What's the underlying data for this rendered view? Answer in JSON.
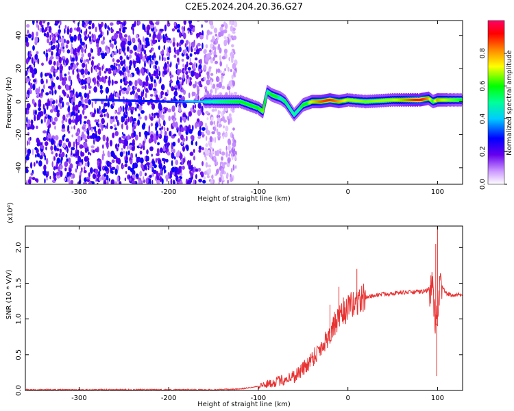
{
  "title": "C2E5.2024.204.20.36.G27",
  "chart_data": [
    {
      "type": "heatmap",
      "xlabel": "Height of straight line (km)",
      "ylabel": "Frequency (Hz)",
      "xlim": [
        -360,
        128
      ],
      "ylim": [
        -50,
        49
      ],
      "xticks": [
        -300,
        -200,
        -100,
        0,
        100
      ],
      "xtick_labels": [
        "-300",
        "-200",
        "-100",
        "0",
        "100"
      ],
      "yticks": [
        -40,
        -20,
        0,
        20,
        40
      ],
      "ytick_labels": [
        "-40",
        "-20",
        "0",
        "20",
        "40"
      ],
      "colorbar": {
        "label": "Normalized spectral amplitude",
        "range": [
          0,
          1
        ],
        "ticks": [
          0,
          0.2,
          0.4,
          0.6,
          0.8
        ],
        "tick_labels": [
          "0.0",
          "0.2",
          "0.4",
          "0.6",
          "0.8"
        ]
      },
      "noise_region_x": [
        -360,
        -125
      ],
      "ridge": {
        "x": [
          -280,
          -200,
          -150,
          -120,
          -100,
          -95,
          -90,
          -85,
          -80,
          -75,
          -70,
          -65,
          -60,
          -55,
          -50,
          -45,
          -40,
          -30,
          -20,
          -10,
          0,
          20,
          50,
          80,
          90,
          95,
          100,
          110,
          128
        ],
        "freq": [
          1,
          0,
          0,
          0,
          -4,
          -6,
          6,
          4,
          3,
          2,
          0,
          -4,
          -8,
          -5,
          -2,
          -1,
          0,
          0,
          1,
          0,
          1,
          0,
          1,
          1,
          2,
          0,
          1,
          1,
          1
        ],
        "amp": [
          0.3,
          0.3,
          0.5,
          0.6,
          0.6,
          0.65,
          0.5,
          0.6,
          0.6,
          0.5,
          0.55,
          0.5,
          0.5,
          0.5,
          0.6,
          0.6,
          0.75,
          0.85,
          0.9,
          0.8,
          0.7,
          0.65,
          0.7,
          0.95,
          0.8,
          0.6,
          0.8,
          0.7,
          0.6
        ]
      }
    },
    {
      "type": "line",
      "xlabel": "Height of straight line (km)",
      "ylabel": "SNR (10 * V/V)",
      "y_multiplier": "(x10⁴)",
      "xlim": [
        -360,
        128
      ],
      "ylim": [
        0,
        2.3
      ],
      "xticks": [
        -300,
        -200,
        -100,
        0,
        100
      ],
      "xtick_labels": [
        "-300",
        "-200",
        "-100",
        "0",
        "100"
      ],
      "yticks": [
        0,
        0.5,
        1.0,
        1.5,
        2.0
      ],
      "ytick_labels": [
        "0.0",
        "0.5",
        "1.0",
        "1.5",
        "2.0"
      ],
      "series": [
        {
          "color": "#e83232",
          "x": [
            -360,
            -300,
            -200,
            -150,
            -120,
            -100,
            -80,
            -60,
            -50,
            -40,
            -30,
            -20,
            -10,
            0,
            10,
            20,
            30,
            40,
            60,
            80,
            90,
            95,
            97,
            100,
            103,
            110,
            128
          ],
          "y": [
            0.01,
            0.01,
            0.01,
            0.01,
            0.02,
            0.06,
            0.12,
            0.2,
            0.3,
            0.45,
            0.6,
            0.8,
            1.0,
            1.15,
            1.25,
            1.3,
            1.33,
            1.35,
            1.37,
            1.38,
            1.4,
            1.45,
            1.0,
            0.9,
            1.5,
            1.35,
            1.33
          ],
          "spikes": [
            [
              -20,
              1.2
            ],
            [
              -15,
              1.1
            ],
            [
              -10,
              1.45
            ],
            [
              -5,
              1.3
            ],
            [
              10,
              1.7
            ],
            [
              100,
              2.3
            ],
            [
              99,
              0.2
            ],
            [
              98,
              2.05
            ]
          ]
        }
      ]
    }
  ]
}
